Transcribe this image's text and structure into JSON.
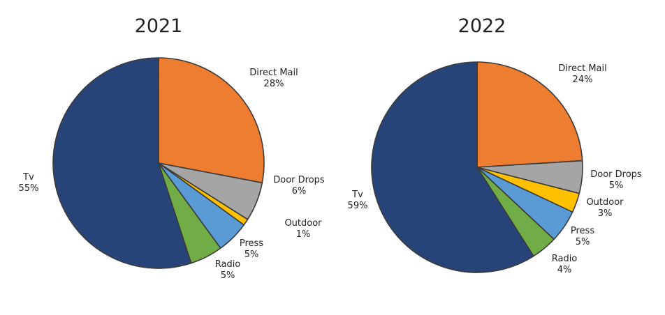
{
  "chart_data": [
    {
      "type": "pie",
      "title": "2021",
      "slices": [
        {
          "label": "Direct Mail",
          "value": 28,
          "value_label": "28%",
          "color": "#ED7D31"
        },
        {
          "label": "Door Drops",
          "value": 6,
          "value_label": "6%",
          "color": "#A5A5A5"
        },
        {
          "label": "Outdoor",
          "value": 1,
          "value_label": "1%",
          "color": "#FFC000"
        },
        {
          "label": "Press",
          "value": 5,
          "value_label": "5%",
          "color": "#5B9BD5"
        },
        {
          "label": "Radio",
          "value": 5,
          "value_label": "5%",
          "color": "#70AD47"
        },
        {
          "label": "Tv",
          "value": 55,
          "value_label": "55%",
          "color": "#264478"
        }
      ]
    },
    {
      "type": "pie",
      "title": "2022",
      "slices": [
        {
          "label": "Direct Mail",
          "value": 24,
          "value_label": "24%",
          "color": "#ED7D31"
        },
        {
          "label": "Door Drops",
          "value": 5,
          "value_label": "5%",
          "color": "#A5A5A5"
        },
        {
          "label": "Outdoor",
          "value": 3,
          "value_label": "3%",
          "color": "#FFC000"
        },
        {
          "label": "Press",
          "value": 5,
          "value_label": "5%",
          "color": "#5B9BD5"
        },
        {
          "label": "Radio",
          "value": 4,
          "value_label": "4%",
          "color": "#70AD47"
        },
        {
          "label": "Tv",
          "value": 59,
          "value_label": "59%",
          "color": "#264478"
        }
      ]
    }
  ]
}
